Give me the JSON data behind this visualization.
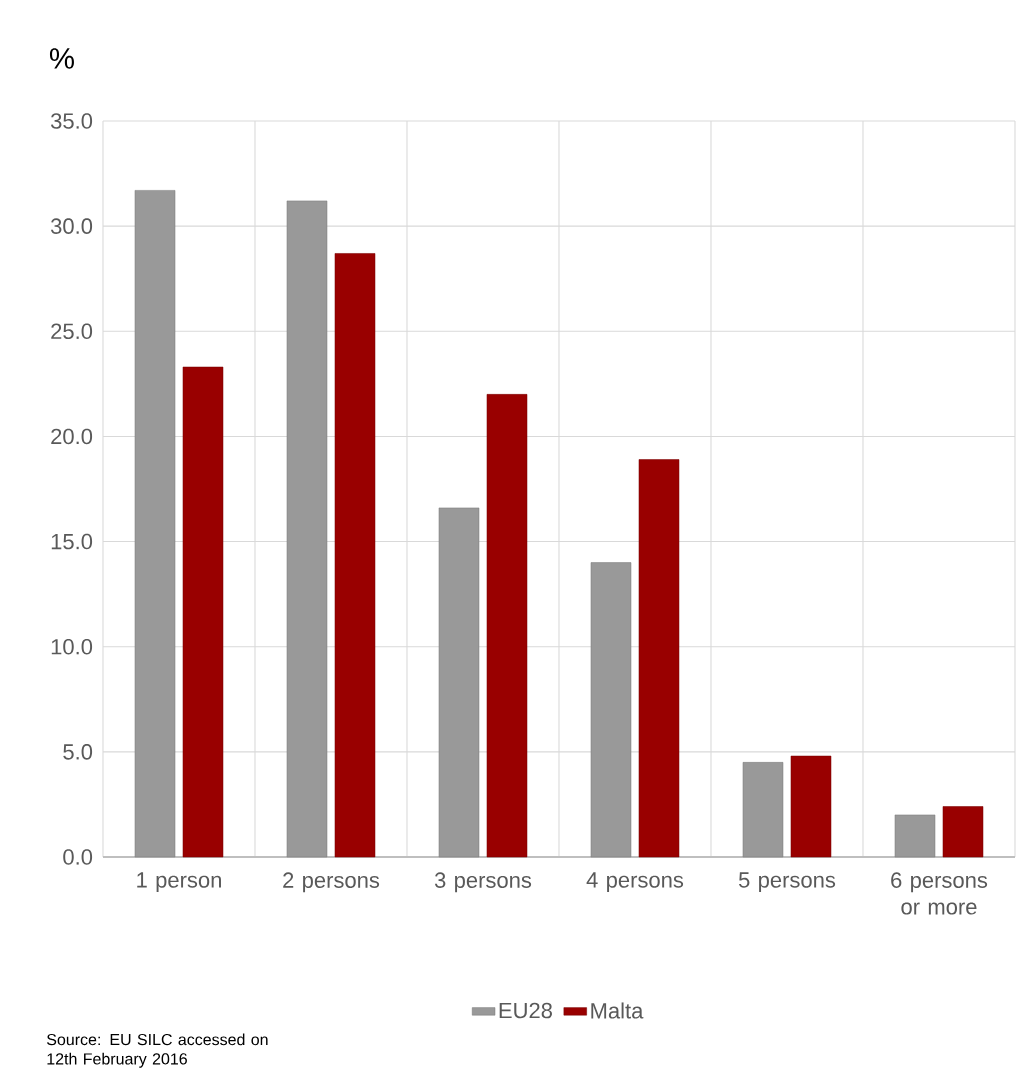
{
  "chart_data": {
    "type": "bar",
    "ylabel": "%",
    "categories": [
      "1 person",
      "2 persons",
      "3 persons",
      "4 persons",
      "5 persons",
      "6 persons or more"
    ],
    "series": [
      {
        "name": "EU28",
        "color": "#999999",
        "values": [
          31.7,
          31.2,
          16.6,
          14.0,
          4.5,
          2.0
        ]
      },
      {
        "name": "Malta",
        "color": "#990000",
        "values": [
          23.3,
          28.7,
          22.0,
          18.9,
          4.8,
          2.4
        ]
      }
    ],
    "ylim": [
      0,
      35
    ],
    "yticks": [
      {
        "value": 0,
        "label": "0.0"
      },
      {
        "value": 5,
        "label": "5.0"
      },
      {
        "value": 10,
        "label": "10.0"
      },
      {
        "value": 15,
        "label": "15.0"
      },
      {
        "value": 20,
        "label": "20.0"
      },
      {
        "value": 25,
        "label": "25.0"
      },
      {
        "value": 30,
        "label": "30.0"
      },
      {
        "value": 35,
        "label": "35.0"
      }
    ],
    "grid": true,
    "legend": "bottom",
    "annotations": [
      "Source: EU SILC accessed on 12th February 2016"
    ]
  }
}
